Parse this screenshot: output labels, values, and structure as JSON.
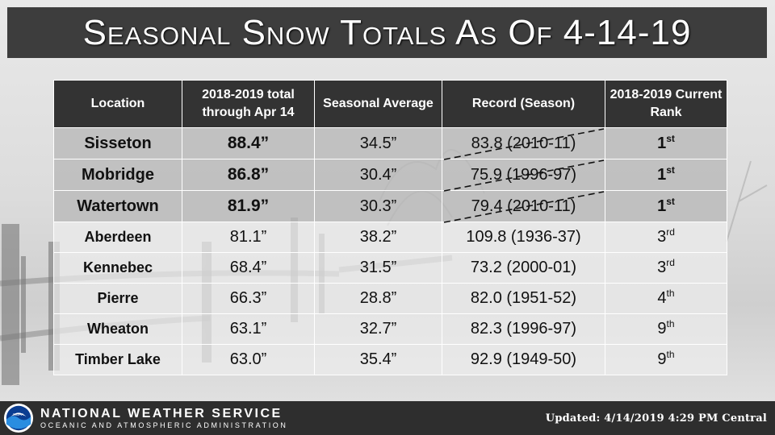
{
  "title": "Seasonal Snow Totals As Of 4-14-19",
  "table": {
    "headers": [
      "Location",
      "2018-2019 total through Apr 14",
      "Seasonal Average",
      "Record (Season)",
      "2018-2019 Current Rank"
    ],
    "rows": [
      {
        "location": "Sisseton",
        "total": "88.4”",
        "average": "34.5”",
        "record": "83.8 (2010-11)",
        "rank": "1",
        "rank_suffix": "st"
      },
      {
        "location": "Mobridge",
        "total": "86.8”",
        "average": "30.4”",
        "record": "75.9 (1996-97)",
        "rank": "1",
        "rank_suffix": "st"
      },
      {
        "location": "Watertown",
        "total": "81.9”",
        "average": "30.3”",
        "record": "79.4 (2010-11)",
        "rank": "1",
        "rank_suffix": "st"
      },
      {
        "location": "Aberdeen",
        "total": "81.1”",
        "average": "38.2”",
        "record": "109.8 (1936-37)",
        "rank": "3",
        "rank_suffix": "rd"
      },
      {
        "location": "Kennebec",
        "total": "68.4”",
        "average": "31.5”",
        "record": "73.2 (2000-01)",
        "rank": "3",
        "rank_suffix": "rd"
      },
      {
        "location": "Pierre",
        "total": "66.3”",
        "average": "28.8”",
        "record": "82.0 (1951-52)",
        "rank": "4",
        "rank_suffix": "th"
      },
      {
        "location": "Wheaton",
        "total": "63.1”",
        "average": "32.7”",
        "record": "82.3 (1996-97)",
        "rank": "9",
        "rank_suffix": "th"
      },
      {
        "location": "Timber Lake",
        "total": "63.0”",
        "average": "35.4”",
        "record": "92.9 (1949-50)",
        "rank": "9",
        "rank_suffix": "th"
      }
    ]
  },
  "footer": {
    "agency_name": "NATIONAL WEATHER SERVICE",
    "agency_sub": "OCEANIC AND ATMOSPHERIC ADMINISTRATION",
    "logo_text": "NOAA",
    "updated": "Updated: 4/14/2019 4:29 PM Central"
  },
  "colors": {
    "title_bar": "#3d3d3d",
    "header_bg": "#333333",
    "record_rows_bg": "#b9b9b9",
    "footer_bg": "#2e2e2e"
  }
}
